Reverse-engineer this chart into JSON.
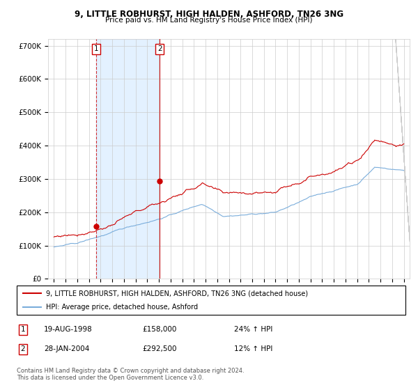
{
  "title": "9, LITTLE ROBHURST, HIGH HALDEN, ASHFORD, TN26 3NG",
  "subtitle": "Price paid vs. HM Land Registry's House Price Index (HPI)",
  "ylim": [
    0,
    720000
  ],
  "yticks": [
    0,
    100000,
    200000,
    300000,
    400000,
    500000,
    600000,
    700000
  ],
  "ytick_labels": [
    "£0",
    "£100K",
    "£200K",
    "£300K",
    "£400K",
    "£500K",
    "£600K",
    "£700K"
  ],
  "sale1_date_num": 1998.63,
  "sale1_price": 158000,
  "sale1_label": "1",
  "sale2_date_num": 2004.08,
  "sale2_price": 292500,
  "sale2_label": "2",
  "legend_line1": "9, LITTLE ROBHURST, HIGH HALDEN, ASHFORD, TN26 3NG (detached house)",
  "legend_line2": "HPI: Average price, detached house, Ashford",
  "table_row1": [
    "1",
    "19-AUG-1998",
    "£158,000",
    "24% ↑ HPI"
  ],
  "table_row2": [
    "2",
    "28-JAN-2004",
    "£292,500",
    "12% ↑ HPI"
  ],
  "footer": "Contains HM Land Registry data © Crown copyright and database right 2024.\nThis data is licensed under the Open Government Licence v3.0.",
  "red_color": "#cc0000",
  "blue_color": "#7aaddb",
  "bg_color": "#ffffff",
  "grid_color": "#cccccc",
  "shade_color": "#ddeeff"
}
